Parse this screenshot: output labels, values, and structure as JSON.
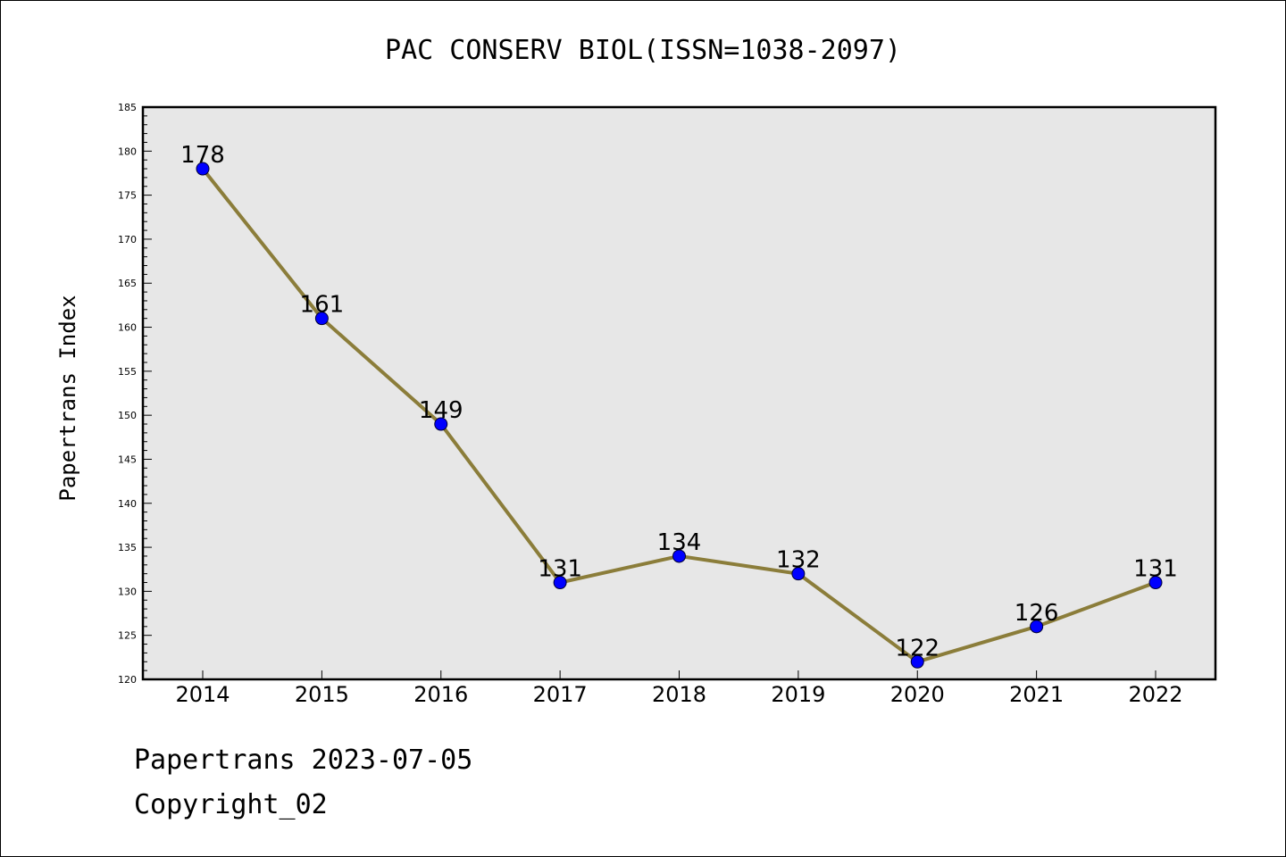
{
  "chart_data": {
    "type": "line",
    "title": "PAC CONSERV BIOL(ISSN=1038-2097)",
    "ylabel": "Papertrans Index",
    "xlabel": "",
    "categories": [
      "2014",
      "2015",
      "2016",
      "2017",
      "2018",
      "2019",
      "2020",
      "2021",
      "2022"
    ],
    "values": [
      178,
      161,
      149,
      131,
      134,
      132,
      122,
      126,
      131
    ],
    "ylim": [
      120,
      185
    ],
    "ytick_step": 5,
    "yminor_step": 1,
    "grid": false,
    "legend": "none"
  },
  "footer": {
    "line1": "Papertrans 2023-07-05",
    "line2": "Copyright_02"
  },
  "colors": {
    "line": "#8b7d3a",
    "marker": "#0000ff",
    "plot_background": "#e7e7e7",
    "axis": "#000000"
  }
}
